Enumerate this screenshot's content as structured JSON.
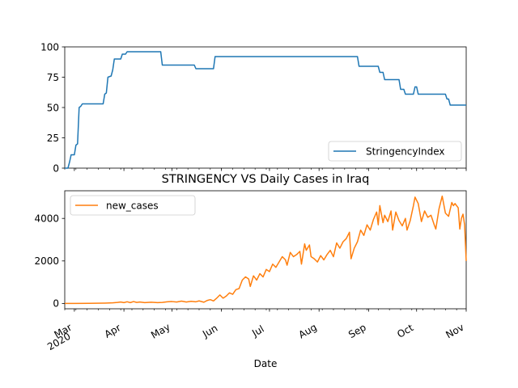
{
  "chart_data": [
    {
      "type": "line",
      "title": "",
      "xlabel": "",
      "ylabel": "",
      "xlim": [
        "2020-02-24",
        "2020-11-01"
      ],
      "ylim": [
        0,
        100
      ],
      "yticks": [
        0,
        25,
        50,
        75,
        100
      ],
      "grid": false,
      "legend_placement": "lower-right",
      "series": [
        {
          "name": "StringencyIndex",
          "color": "#1f77b4",
          "points": [
            [
              "2020-02-24",
              0
            ],
            [
              "2020-02-26",
              0
            ],
            [
              "2020-02-27",
              5
            ],
            [
              "2020-02-28",
              11
            ],
            [
              "2020-03-01",
              11
            ],
            [
              "2020-03-02",
              19
            ],
            [
              "2020-03-03",
              20
            ],
            [
              "2020-03-04",
              50
            ],
            [
              "2020-03-05",
              51
            ],
            [
              "2020-03-06",
              53
            ],
            [
              "2020-03-19",
              53
            ],
            [
              "2020-03-20",
              61
            ],
            [
              "2020-03-21",
              62
            ],
            [
              "2020-03-22",
              75
            ],
            [
              "2020-03-24",
              76
            ],
            [
              "2020-03-25",
              81
            ],
            [
              "2020-03-26",
              90
            ],
            [
              "2020-03-30",
              90
            ],
            [
              "2020-03-31",
              94
            ],
            [
              "2020-04-02",
              94
            ],
            [
              "2020-04-03",
              96
            ],
            [
              "2020-04-24",
              96
            ],
            [
              "2020-04-25",
              85
            ],
            [
              "2020-05-15",
              85
            ],
            [
              "2020-05-16",
              82
            ],
            [
              "2020-05-27",
              82
            ],
            [
              "2020-05-28",
              92
            ],
            [
              "2020-08-25",
              92
            ],
            [
              "2020-08-26",
              84
            ],
            [
              "2020-09-07",
              84
            ],
            [
              "2020-09-08",
              79
            ],
            [
              "2020-09-10",
              79
            ],
            [
              "2020-09-11",
              73
            ],
            [
              "2020-09-20",
              73
            ],
            [
              "2020-09-21",
              65
            ],
            [
              "2020-09-23",
              65
            ],
            [
              "2020-09-24",
              61
            ],
            [
              "2020-09-29",
              61
            ],
            [
              "2020-09-30",
              67
            ],
            [
              "2020-10-01",
              67
            ],
            [
              "2020-10-02",
              61
            ],
            [
              "2020-10-19",
              61
            ],
            [
              "2020-10-20",
              57
            ],
            [
              "2020-10-21",
              57
            ],
            [
              "2020-10-22",
              52
            ],
            [
              "2020-11-01",
              52
            ]
          ]
        }
      ],
      "xticks": [
        {
          "date": "2020-03-01",
          "label": "Mar",
          "sublabel": "2020"
        },
        {
          "date": "2020-04-01",
          "label": "Apr"
        },
        {
          "date": "2020-05-01",
          "label": "May"
        },
        {
          "date": "2020-06-01",
          "label": "Jun"
        },
        {
          "date": "2020-07-01",
          "label": "Jul"
        },
        {
          "date": "2020-08-01",
          "label": "Aug"
        },
        {
          "date": "2020-09-01",
          "label": "Sep"
        },
        {
          "date": "2020-10-01",
          "label": "Oct"
        },
        {
          "date": "2020-11-01",
          "label": "Nov"
        }
      ]
    },
    {
      "type": "line",
      "title": "STRINGENCY VS Daily Cases in Iraq",
      "xlabel": "Date",
      "ylabel": "",
      "xlim": [
        "2020-02-24",
        "2020-11-01"
      ],
      "ylim": [
        -250,
        5300
      ],
      "yticks": [
        0,
        2000,
        4000
      ],
      "grid": false,
      "legend_placement": "upper-left",
      "series": [
        {
          "name": "new_cases",
          "color": "#ff7f0e",
          "points": [
            [
              "2020-02-24",
              0
            ],
            [
              "2020-03-01",
              0
            ],
            [
              "2020-03-10",
              5
            ],
            [
              "2020-03-20",
              15
            ],
            [
              "2020-03-25",
              30
            ],
            [
              "2020-03-28",
              50
            ],
            [
              "2020-03-30",
              70
            ],
            [
              "2020-04-01",
              40
            ],
            [
              "2020-04-03",
              80
            ],
            [
              "2020-04-05",
              40
            ],
            [
              "2020-04-07",
              90
            ],
            [
              "2020-04-09",
              50
            ],
            [
              "2020-04-11",
              70
            ],
            [
              "2020-04-14",
              40
            ],
            [
              "2020-04-18",
              60
            ],
            [
              "2020-04-22",
              40
            ],
            [
              "2020-04-25",
              50
            ],
            [
              "2020-04-28",
              80
            ],
            [
              "2020-05-01",
              90
            ],
            [
              "2020-05-04",
              70
            ],
            [
              "2020-05-07",
              110
            ],
            [
              "2020-05-10",
              70
            ],
            [
              "2020-05-13",
              100
            ],
            [
              "2020-05-16",
              80
            ],
            [
              "2020-05-18",
              120
            ],
            [
              "2020-05-21",
              60
            ],
            [
              "2020-05-23",
              140
            ],
            [
              "2020-05-25",
              180
            ],
            [
              "2020-05-27",
              120
            ],
            [
              "2020-05-29",
              250
            ],
            [
              "2020-05-31",
              400
            ],
            [
              "2020-06-02",
              250
            ],
            [
              "2020-06-04",
              350
            ],
            [
              "2020-06-06",
              500
            ],
            [
              "2020-06-08",
              430
            ],
            [
              "2020-06-10",
              650
            ],
            [
              "2020-06-12",
              700
            ],
            [
              "2020-06-14",
              1100
            ],
            [
              "2020-06-16",
              1250
            ],
            [
              "2020-06-18",
              1150
            ],
            [
              "2020-06-19",
              800
            ],
            [
              "2020-06-21",
              1300
            ],
            [
              "2020-06-23",
              1100
            ],
            [
              "2020-06-25",
              1400
            ],
            [
              "2020-06-27",
              1250
            ],
            [
              "2020-06-29",
              1600
            ],
            [
              "2020-07-01",
              1500
            ],
            [
              "2020-07-03",
              1850
            ],
            [
              "2020-07-05",
              1700
            ],
            [
              "2020-07-07",
              1950
            ],
            [
              "2020-07-09",
              2200
            ],
            [
              "2020-07-11",
              2050
            ],
            [
              "2020-07-12",
              1800
            ],
            [
              "2020-07-14",
              2400
            ],
            [
              "2020-07-16",
              2200
            ],
            [
              "2020-07-18",
              2300
            ],
            [
              "2020-07-20",
              2450
            ],
            [
              "2020-07-21",
              1850
            ],
            [
              "2020-07-23",
              2800
            ],
            [
              "2020-07-24",
              2500
            ],
            [
              "2020-07-26",
              2750
            ],
            [
              "2020-07-27",
              2200
            ],
            [
              "2020-07-29",
              2100
            ],
            [
              "2020-07-31",
              1950
            ],
            [
              "2020-08-02",
              2250
            ],
            [
              "2020-08-04",
              2050
            ],
            [
              "2020-08-06",
              2300
            ],
            [
              "2020-08-08",
              2500
            ],
            [
              "2020-08-10",
              2200
            ],
            [
              "2020-08-12",
              2850
            ],
            [
              "2020-08-14",
              2600
            ],
            [
              "2020-08-16",
              2900
            ],
            [
              "2020-08-18",
              3050
            ],
            [
              "2020-08-20",
              3350
            ],
            [
              "2020-08-21",
              2100
            ],
            [
              "2020-08-23",
              2600
            ],
            [
              "2020-08-25",
              2900
            ],
            [
              "2020-08-27",
              3450
            ],
            [
              "2020-08-29",
              3200
            ],
            [
              "2020-08-31",
              3700
            ],
            [
              "2020-09-02",
              3450
            ],
            [
              "2020-09-04",
              3950
            ],
            [
              "2020-09-06",
              4300
            ],
            [
              "2020-09-07",
              3700
            ],
            [
              "2020-09-08",
              4600
            ],
            [
              "2020-09-10",
              3800
            ],
            [
              "2020-09-11",
              4150
            ],
            [
              "2020-09-13",
              3850
            ],
            [
              "2020-09-15",
              4350
            ],
            [
              "2020-09-16",
              3450
            ],
            [
              "2020-09-18",
              4300
            ],
            [
              "2020-09-20",
              3900
            ],
            [
              "2020-09-22",
              3650
            ],
            [
              "2020-09-24",
              4000
            ],
            [
              "2020-09-25",
              3450
            ],
            [
              "2020-09-27",
              3900
            ],
            [
              "2020-09-29",
              4600
            ],
            [
              "2020-09-30",
              5000
            ],
            [
              "2020-10-02",
              4700
            ],
            [
              "2020-10-04",
              3850
            ],
            [
              "2020-10-06",
              4350
            ],
            [
              "2020-10-08",
              4050
            ],
            [
              "2020-10-10",
              4150
            ],
            [
              "2020-10-12",
              3700
            ],
            [
              "2020-10-13",
              3500
            ],
            [
              "2020-10-15",
              4450
            ],
            [
              "2020-10-17",
              5050
            ],
            [
              "2020-10-19",
              4250
            ],
            [
              "2020-10-21",
              4100
            ],
            [
              "2020-10-23",
              4750
            ],
            [
              "2020-10-24",
              4600
            ],
            [
              "2020-10-25",
              4700
            ],
            [
              "2020-10-27",
              4500
            ],
            [
              "2020-10-28",
              3500
            ],
            [
              "2020-10-29",
              4000
            ],
            [
              "2020-10-30",
              4200
            ],
            [
              "2020-10-31",
              3700
            ],
            [
              "2020-11-01",
              2000
            ]
          ]
        }
      ],
      "xticks": [
        {
          "date": "2020-03-01",
          "label": "Mar",
          "sublabel": "2020"
        },
        {
          "date": "2020-04-01",
          "label": "Apr"
        },
        {
          "date": "2020-05-01",
          "label": "May"
        },
        {
          "date": "2020-06-01",
          "label": "Jun"
        },
        {
          "date": "2020-07-01",
          "label": "Jul"
        },
        {
          "date": "2020-08-01",
          "label": "Aug"
        },
        {
          "date": "2020-09-01",
          "label": "Sep"
        },
        {
          "date": "2020-10-01",
          "label": "Oct"
        },
        {
          "date": "2020-11-01",
          "label": "Nov"
        }
      ]
    }
  ]
}
